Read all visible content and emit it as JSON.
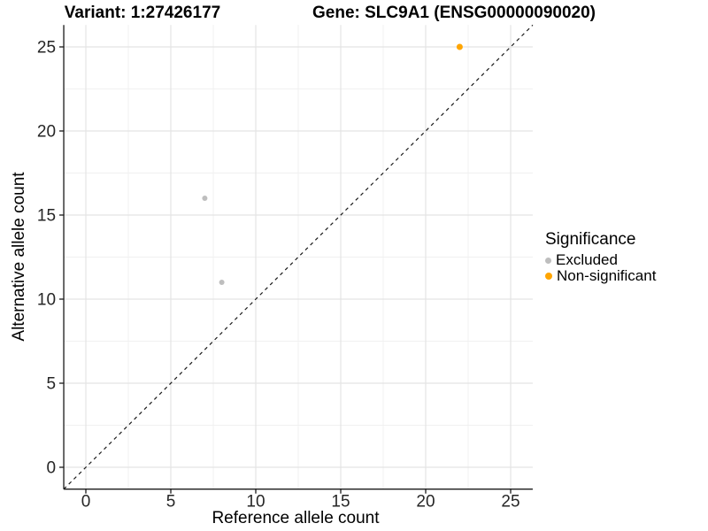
{
  "header": {
    "variant_title": "Variant: 1:27426177",
    "gene_title": "Gene: SLC9A1 (ENSG00000090020)"
  },
  "chart_data": {
    "type": "scatter",
    "title": "Variant: 1:27426177 — Gene: SLC9A1 (ENSG00000090020)",
    "xlabel": "Reference allele count",
    "ylabel": "Alternative allele count",
    "xlim": [
      -1.3,
      26.3
    ],
    "ylim": [
      -1.3,
      26.3
    ],
    "x_ticks": [
      0,
      5,
      10,
      15,
      20,
      25
    ],
    "y_ticks": [
      0,
      5,
      10,
      15,
      20,
      25
    ],
    "minor_x_ticks": [
      2.5,
      7.5,
      12.5,
      17.5,
      22.5
    ],
    "minor_y_ticks": [
      2.5,
      7.5,
      12.5,
      17.5,
      22.5
    ],
    "grid": "major+minor",
    "identity_line": {
      "style": "dashed",
      "color": "#1a1a1a",
      "from": -1.3,
      "to": 26.3
    },
    "legend": {
      "position": "right",
      "title": "Significance",
      "items": [
        {
          "label": "Excluded",
          "color": "#bebebe",
          "marker_px": 7
        },
        {
          "label": "Non-significant",
          "color": "#ffa500",
          "marker_px": 8
        }
      ]
    },
    "series": [
      {
        "name": "Excluded",
        "color": "#bebebe",
        "marker_radius": 3,
        "points": [
          [
            7,
            16
          ],
          [
            8,
            11
          ]
        ]
      },
      {
        "name": "Non-significant",
        "color": "#ffa500",
        "marker_radius": 3.5,
        "points": [
          [
            22,
            25
          ]
        ]
      }
    ]
  },
  "style": {
    "background": "#ffffff",
    "axis_line": "#1a1a1a",
    "tick_mark": "#1a1a1a",
    "tick_label": "#262626",
    "grid_major": "#e4e4e4",
    "grid_minor": "#f0f0f0",
    "title_text": "#000000"
  }
}
